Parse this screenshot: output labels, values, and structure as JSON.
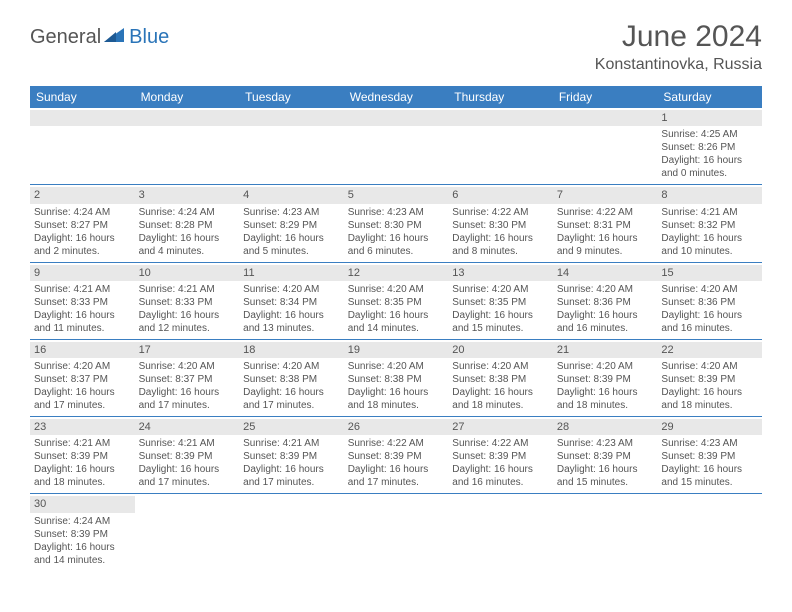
{
  "brand": {
    "part1": "General",
    "part2": "Blue"
  },
  "title": "June 2024",
  "subtitle": "Konstantinovka, Russia",
  "colors": {
    "header_bg": "#3a7ec1",
    "header_text": "#ffffff",
    "daynum_bg": "#e8e8e8",
    "row_border": "#3a7ec1",
    "text": "#555555",
    "brand_blue": "#2a74b8"
  },
  "weekdays": [
    "Sunday",
    "Monday",
    "Tuesday",
    "Wednesday",
    "Thursday",
    "Friday",
    "Saturday"
  ],
  "weeks": [
    [
      null,
      null,
      null,
      null,
      null,
      null,
      {
        "n": "1",
        "sunrise": "Sunrise: 4:25 AM",
        "sunset": "Sunset: 8:26 PM",
        "day1": "Daylight: 16 hours",
        "day2": "and 0 minutes."
      }
    ],
    [
      {
        "n": "2",
        "sunrise": "Sunrise: 4:24 AM",
        "sunset": "Sunset: 8:27 PM",
        "day1": "Daylight: 16 hours",
        "day2": "and 2 minutes."
      },
      {
        "n": "3",
        "sunrise": "Sunrise: 4:24 AM",
        "sunset": "Sunset: 8:28 PM",
        "day1": "Daylight: 16 hours",
        "day2": "and 4 minutes."
      },
      {
        "n": "4",
        "sunrise": "Sunrise: 4:23 AM",
        "sunset": "Sunset: 8:29 PM",
        "day1": "Daylight: 16 hours",
        "day2": "and 5 minutes."
      },
      {
        "n": "5",
        "sunrise": "Sunrise: 4:23 AM",
        "sunset": "Sunset: 8:30 PM",
        "day1": "Daylight: 16 hours",
        "day2": "and 6 minutes."
      },
      {
        "n": "6",
        "sunrise": "Sunrise: 4:22 AM",
        "sunset": "Sunset: 8:30 PM",
        "day1": "Daylight: 16 hours",
        "day2": "and 8 minutes."
      },
      {
        "n": "7",
        "sunrise": "Sunrise: 4:22 AM",
        "sunset": "Sunset: 8:31 PM",
        "day1": "Daylight: 16 hours",
        "day2": "and 9 minutes."
      },
      {
        "n": "8",
        "sunrise": "Sunrise: 4:21 AM",
        "sunset": "Sunset: 8:32 PM",
        "day1": "Daylight: 16 hours",
        "day2": "and 10 minutes."
      }
    ],
    [
      {
        "n": "9",
        "sunrise": "Sunrise: 4:21 AM",
        "sunset": "Sunset: 8:33 PM",
        "day1": "Daylight: 16 hours",
        "day2": "and 11 minutes."
      },
      {
        "n": "10",
        "sunrise": "Sunrise: 4:21 AM",
        "sunset": "Sunset: 8:33 PM",
        "day1": "Daylight: 16 hours",
        "day2": "and 12 minutes."
      },
      {
        "n": "11",
        "sunrise": "Sunrise: 4:20 AM",
        "sunset": "Sunset: 8:34 PM",
        "day1": "Daylight: 16 hours",
        "day2": "and 13 minutes."
      },
      {
        "n": "12",
        "sunrise": "Sunrise: 4:20 AM",
        "sunset": "Sunset: 8:35 PM",
        "day1": "Daylight: 16 hours",
        "day2": "and 14 minutes."
      },
      {
        "n": "13",
        "sunrise": "Sunrise: 4:20 AM",
        "sunset": "Sunset: 8:35 PM",
        "day1": "Daylight: 16 hours",
        "day2": "and 15 minutes."
      },
      {
        "n": "14",
        "sunrise": "Sunrise: 4:20 AM",
        "sunset": "Sunset: 8:36 PM",
        "day1": "Daylight: 16 hours",
        "day2": "and 16 minutes."
      },
      {
        "n": "15",
        "sunrise": "Sunrise: 4:20 AM",
        "sunset": "Sunset: 8:36 PM",
        "day1": "Daylight: 16 hours",
        "day2": "and 16 minutes."
      }
    ],
    [
      {
        "n": "16",
        "sunrise": "Sunrise: 4:20 AM",
        "sunset": "Sunset: 8:37 PM",
        "day1": "Daylight: 16 hours",
        "day2": "and 17 minutes."
      },
      {
        "n": "17",
        "sunrise": "Sunrise: 4:20 AM",
        "sunset": "Sunset: 8:37 PM",
        "day1": "Daylight: 16 hours",
        "day2": "and 17 minutes."
      },
      {
        "n": "18",
        "sunrise": "Sunrise: 4:20 AM",
        "sunset": "Sunset: 8:38 PM",
        "day1": "Daylight: 16 hours",
        "day2": "and 17 minutes."
      },
      {
        "n": "19",
        "sunrise": "Sunrise: 4:20 AM",
        "sunset": "Sunset: 8:38 PM",
        "day1": "Daylight: 16 hours",
        "day2": "and 18 minutes."
      },
      {
        "n": "20",
        "sunrise": "Sunrise: 4:20 AM",
        "sunset": "Sunset: 8:38 PM",
        "day1": "Daylight: 16 hours",
        "day2": "and 18 minutes."
      },
      {
        "n": "21",
        "sunrise": "Sunrise: 4:20 AM",
        "sunset": "Sunset: 8:39 PM",
        "day1": "Daylight: 16 hours",
        "day2": "and 18 minutes."
      },
      {
        "n": "22",
        "sunrise": "Sunrise: 4:20 AM",
        "sunset": "Sunset: 8:39 PM",
        "day1": "Daylight: 16 hours",
        "day2": "and 18 minutes."
      }
    ],
    [
      {
        "n": "23",
        "sunrise": "Sunrise: 4:21 AM",
        "sunset": "Sunset: 8:39 PM",
        "day1": "Daylight: 16 hours",
        "day2": "and 18 minutes."
      },
      {
        "n": "24",
        "sunrise": "Sunrise: 4:21 AM",
        "sunset": "Sunset: 8:39 PM",
        "day1": "Daylight: 16 hours",
        "day2": "and 17 minutes."
      },
      {
        "n": "25",
        "sunrise": "Sunrise: 4:21 AM",
        "sunset": "Sunset: 8:39 PM",
        "day1": "Daylight: 16 hours",
        "day2": "and 17 minutes."
      },
      {
        "n": "26",
        "sunrise": "Sunrise: 4:22 AM",
        "sunset": "Sunset: 8:39 PM",
        "day1": "Daylight: 16 hours",
        "day2": "and 17 minutes."
      },
      {
        "n": "27",
        "sunrise": "Sunrise: 4:22 AM",
        "sunset": "Sunset: 8:39 PM",
        "day1": "Daylight: 16 hours",
        "day2": "and 16 minutes."
      },
      {
        "n": "28",
        "sunrise": "Sunrise: 4:23 AM",
        "sunset": "Sunset: 8:39 PM",
        "day1": "Daylight: 16 hours",
        "day2": "and 15 minutes."
      },
      {
        "n": "29",
        "sunrise": "Sunrise: 4:23 AM",
        "sunset": "Sunset: 8:39 PM",
        "day1": "Daylight: 16 hours",
        "day2": "and 15 minutes."
      }
    ],
    [
      {
        "n": "30",
        "sunrise": "Sunrise: 4:24 AM",
        "sunset": "Sunset: 8:39 PM",
        "day1": "Daylight: 16 hours",
        "day2": "and 14 minutes."
      },
      null,
      null,
      null,
      null,
      null,
      null
    ]
  ]
}
